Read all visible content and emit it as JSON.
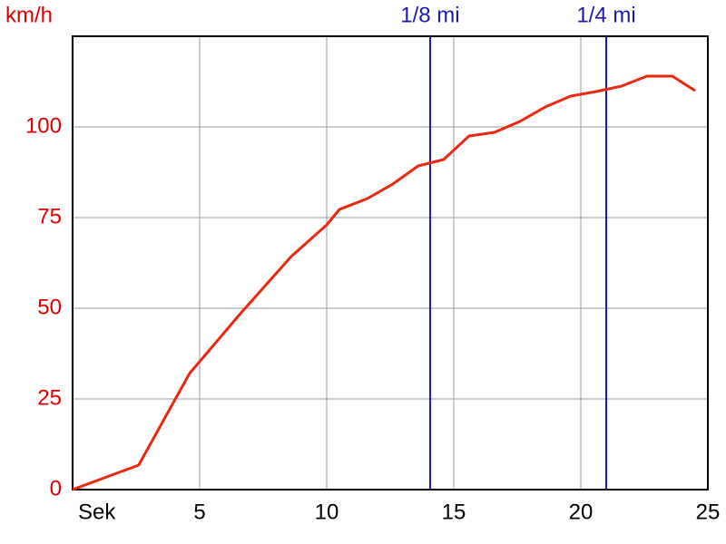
{
  "chart_data": {
    "type": "line",
    "y_label": "km/h",
    "x": [
      0,
      2.6,
      4.6,
      6.6,
      8.6,
      10,
      10.5,
      11.6,
      12.6,
      13.6,
      14.6,
      15.6,
      16.6,
      17.6,
      18.6,
      19.6,
      20.6,
      21.6,
      22.6,
      23.6,
      24.5
    ],
    "series": [
      {
        "color": "#e8280f",
        "values": [
          0,
          6.75,
          32,
          48.5,
          64.25,
          73,
          77.25,
          80.25,
          84.25,
          89.25,
          91,
          97.5,
          98.5,
          101.5,
          105.5,
          108.5,
          109.75,
          111.25,
          114,
          114,
          110
        ]
      }
    ],
    "xlim": [
      0,
      25
    ],
    "ylim": [
      0,
      125
    ],
    "xticks": [
      {
        "value": 0,
        "label": "Sek"
      },
      5,
      10,
      15,
      20,
      25
    ],
    "yticks": [
      0,
      25,
      50,
      75,
      100
    ],
    "grid": true,
    "axis_label_color": "#dd0000",
    "markers": [
      {
        "x": 14.07,
        "label": "1/8 mi"
      },
      {
        "x": 21,
        "label": "1/4 mi"
      }
    ],
    "marker_color": "#1a1aaa"
  }
}
